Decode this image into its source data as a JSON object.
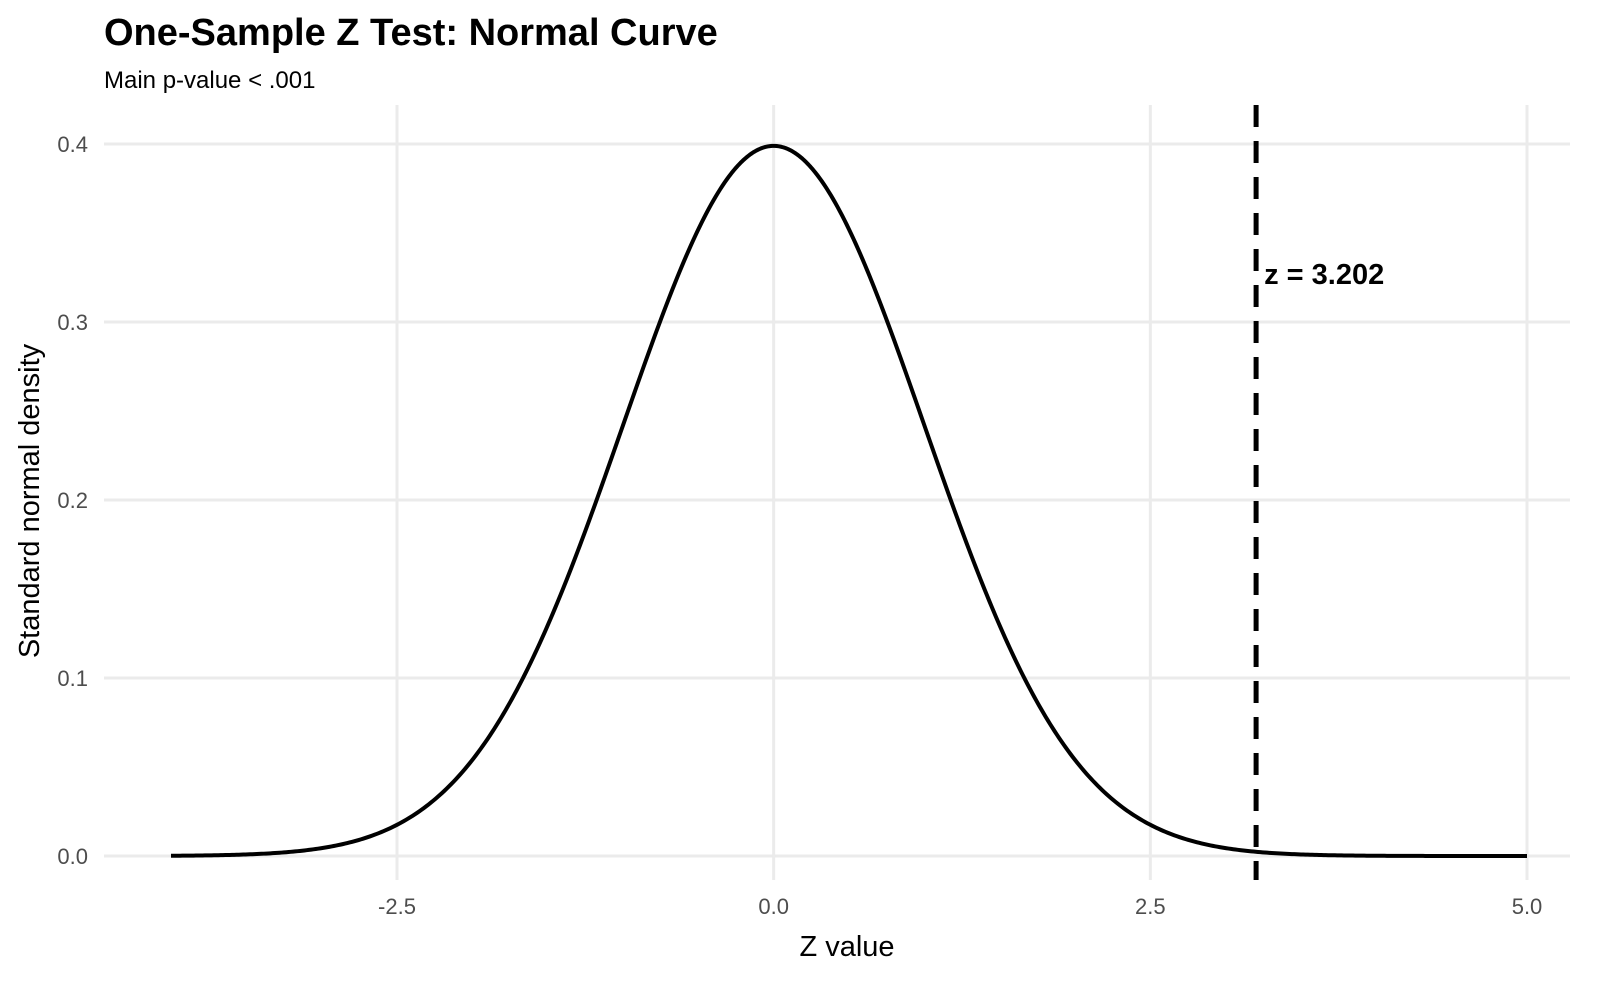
{
  "chart_data": {
    "type": "line",
    "title": "One-Sample Z Test: Normal Curve",
    "subtitle": "Main p-value < .001",
    "xlabel": "Z value",
    "ylabel": "Standard normal density",
    "xlim": [
      -4.0,
      5.0
    ],
    "ylim": [
      0,
      0.4
    ],
    "xticks": [
      -2.5,
      0.0,
      2.5,
      5.0
    ],
    "xtick_labels": [
      "-2.5",
      "0.0",
      "2.5",
      "5.0"
    ],
    "yticks": [
      0.0,
      0.1,
      0.2,
      0.3,
      0.4
    ],
    "ytick_labels": [
      "0.0",
      "0.1",
      "0.2",
      "0.3",
      "0.4"
    ],
    "grid": true,
    "series": [
      {
        "distribution": "standard normal density",
        "color": "#000000",
        "x_range": [
          -4.0,
          5.0
        ]
      }
    ],
    "reference_line": {
      "x": 3.202,
      "style": "dashed",
      "color": "#000000",
      "label": "z = 3.202"
    }
  }
}
